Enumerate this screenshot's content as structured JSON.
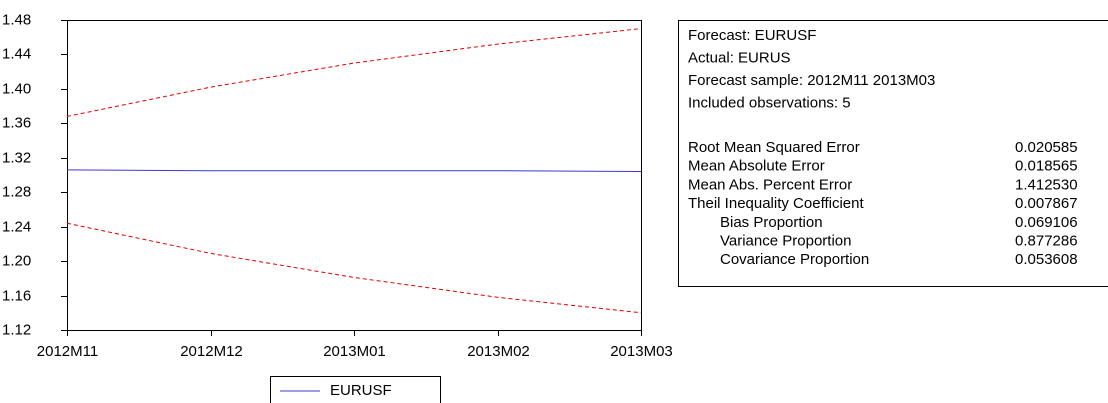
{
  "chart_data": {
    "type": "line",
    "categories": [
      "2012M11",
      "2012M12",
      "2013M01",
      "2013M02",
      "2013M03"
    ],
    "series": [
      {
        "name": "EURUSF",
        "color": "#3a3ad0",
        "dash": false,
        "values": [
          1.306,
          1.305,
          1.305,
          1.305,
          1.304
        ]
      },
      {
        "color": "#e00000",
        "dash": true,
        "values": [
          1.368,
          1.402,
          1.43,
          1.452,
          1.47
        ]
      },
      {
        "color": "#e00000",
        "dash": true,
        "values": [
          1.244,
          1.209,
          1.181,
          1.158,
          1.14
        ]
      }
    ],
    "ylim": [
      1.12,
      1.48
    ],
    "yticks": [
      1.12,
      1.16,
      {
        "value": 1.2,
        "label": "1.20"
      },
      1.24,
      1.28,
      1.32,
      1.36,
      {
        "value": 1.4,
        "label": "1.40"
      },
      1.44,
      1.48
    ],
    "grid": false,
    "legend": "bottom"
  },
  "stats_box": {
    "lines": [
      "Forecast: EURUSF",
      "Actual: EURUS",
      "Forecast sample: 2012M11 2013M03",
      "Included observations: 5"
    ],
    "rows": [
      [
        "Root Mean Squared Error",
        "0.020585"
      ],
      [
        "Mean Absolute Error",
        "0.018565"
      ],
      [
        "Mean Abs. Percent Error",
        "1.412530"
      ],
      [
        "Theil Inequality Coefficient",
        "0.007867"
      ],
      [
        "Bias Proportion",
        "0.069106"
      ],
      [
        "Variance Proportion",
        "0.877286"
      ],
      [
        "Covariance Proportion",
        "0.053608"
      ]
    ]
  }
}
